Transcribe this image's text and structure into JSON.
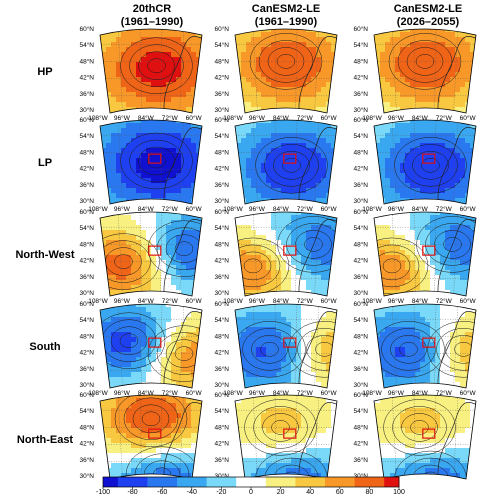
{
  "columns": [
    {
      "title": "20thCR",
      "subtitle": "(1961–1990)"
    },
    {
      "title": "CanESM2-LE",
      "subtitle": "(1961–1990)"
    },
    {
      "title": "CanESM2-LE",
      "subtitle": "(2026–2055)"
    }
  ],
  "rows": [
    "HP",
    "LP",
    "North-West",
    "South",
    "North-East"
  ],
  "map_labels": {
    "lat": [
      "60°N",
      "54°N",
      "48°N",
      "42°N",
      "36°N",
      "30°N"
    ],
    "lon": [
      "108°W",
      "96°W",
      "84°W",
      "72°W",
      "60°W"
    ]
  },
  "colorbar": {
    "ticks": [
      "-100",
      "-80",
      "-60",
      "-40",
      "-20",
      "0",
      "20",
      "40",
      "60",
      "80",
      "100"
    ],
    "min": -100,
    "max": 100,
    "colors": [
      "#1010d0",
      "#1e40f0",
      "#2a78f0",
      "#3aa8f0",
      "#7ad8f8",
      "#ffffff",
      "#f8f080",
      "#f8c840",
      "#f89828",
      "#f06418",
      "#e01010"
    ]
  },
  "colors": {
    "coast": "#222222",
    "box": "#e01010",
    "contour": "#1a1a1a"
  }
}
